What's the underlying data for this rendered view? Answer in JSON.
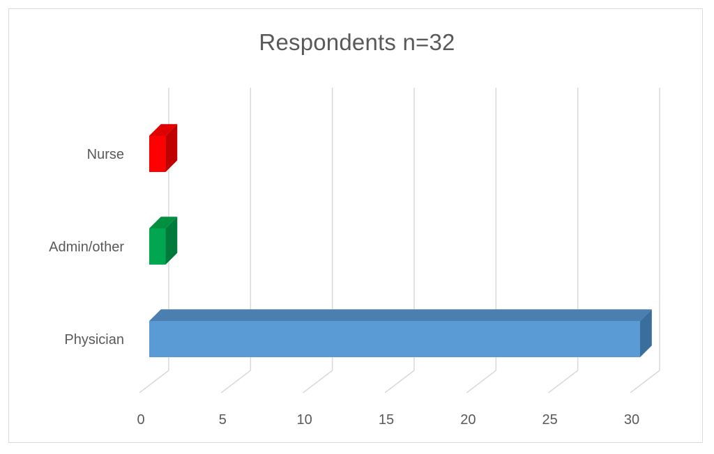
{
  "chart_data": {
    "type": "bar",
    "orientation": "horizontal",
    "style": "3d",
    "title": "Respondents n=32",
    "xlabel": "",
    "ylabel": "",
    "categories": [
      "Nurse",
      "Admin/other",
      "Physician"
    ],
    "values": [
      1,
      1,
      30
    ],
    "colors": [
      "#ff0000",
      "#00a650",
      "#5b9bd5"
    ],
    "side_colors": [
      "#c00000",
      "#007a3a",
      "#3a6e9c"
    ],
    "top_colors": [
      "#e00000",
      "#00903f",
      "#4a7fb0"
    ],
    "xlim": [
      0,
      30
    ],
    "x_ticks": [
      0,
      5,
      10,
      15,
      20,
      25,
      30
    ],
    "grid": true,
    "legend": "none"
  }
}
